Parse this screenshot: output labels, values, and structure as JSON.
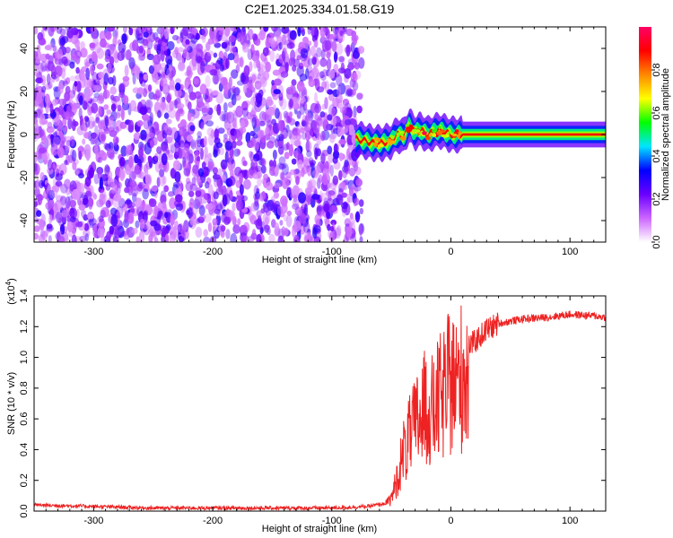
{
  "title": "C2E1.2025.334.01.58.G19",
  "chart_data": [
    {
      "type": "heatmap",
      "xlabel": "Height of straight line (km)",
      "ylabel": "Frequency (Hz)",
      "xlim": [
        -350,
        130
      ],
      "ylim": [
        -50,
        50
      ],
      "xticks": [
        -300,
        -200,
        -100,
        0,
        100
      ],
      "yticks": [
        -40,
        -20,
        0,
        20,
        40
      ],
      "colorbar": {
        "label": "Normalized spectral amplitude",
        "range": [
          0,
          1
        ],
        "ticks": [
          "0.0",
          "0.2",
          "0.4",
          "0.6",
          "0.8"
        ],
        "tick_values": [
          0,
          0.2,
          0.4,
          0.6,
          0.8
        ],
        "colors": [
          "#ffffff",
          "#cc66ff",
          "#6a00ff",
          "#0000ff",
          "#00e5ff",
          "#00ff00",
          "#ffff00",
          "#ff8800",
          "#ff0000",
          "#ff0066"
        ]
      },
      "noise_region": [
        -350,
        -75
      ],
      "trace": {
        "x": [
          -80,
          -72,
          -65,
          -58,
          -50,
          -45,
          -40,
          -35,
          -30,
          -25,
          -20,
          -15,
          -10,
          -5,
          0,
          10,
          30,
          60,
          100,
          130
        ],
        "center_hz": [
          -2,
          -3,
          -4,
          -4,
          -3,
          0,
          -1,
          4,
          1,
          2,
          0,
          1,
          2,
          1,
          0,
          0,
          0,
          0,
          0,
          0
        ]
      }
    },
    {
      "type": "line",
      "xlabel": "Height of straight line (km)",
      "ylabel": "SNR (10 * v/v)",
      "y_multiplier": "(x10",
      "y_multiplier_exp": "4",
      "y_multiplier_close": ")",
      "xlim": [
        -350,
        130
      ],
      "ylim": [
        0,
        1.4
      ],
      "xticks": [
        -300,
        -200,
        -100,
        0,
        100
      ],
      "yticks": [
        "0.0",
        "0.2",
        "0.4",
        "0.6",
        "0.8",
        "1.0",
        "1.2",
        "1.4"
      ],
      "ytick_values": [
        0,
        0.2,
        0.4,
        0.6,
        0.8,
        1.0,
        1.2,
        1.4
      ],
      "series": [
        {
          "color": "#ee2222",
          "x": [
            -350,
            -300,
            -250,
            -200,
            -150,
            -100,
            -70,
            -55,
            -50,
            -45,
            -40,
            -35,
            -30,
            -25,
            -20,
            -15,
            -10,
            -5,
            0,
            5,
            10,
            20,
            30,
            40,
            60,
            80,
            100,
            120,
            130
          ],
          "y": [
            0.04,
            0.03,
            0.02,
            0.02,
            0.02,
            0.02,
            0.03,
            0.05,
            0.1,
            0.25,
            0.45,
            0.55,
            0.65,
            0.75,
            0.8,
            0.75,
            0.85,
            0.9,
            1.0,
            0.95,
            1.05,
            1.1,
            1.18,
            1.22,
            1.25,
            1.26,
            1.28,
            1.27,
            1.26
          ]
        }
      ]
    }
  ]
}
